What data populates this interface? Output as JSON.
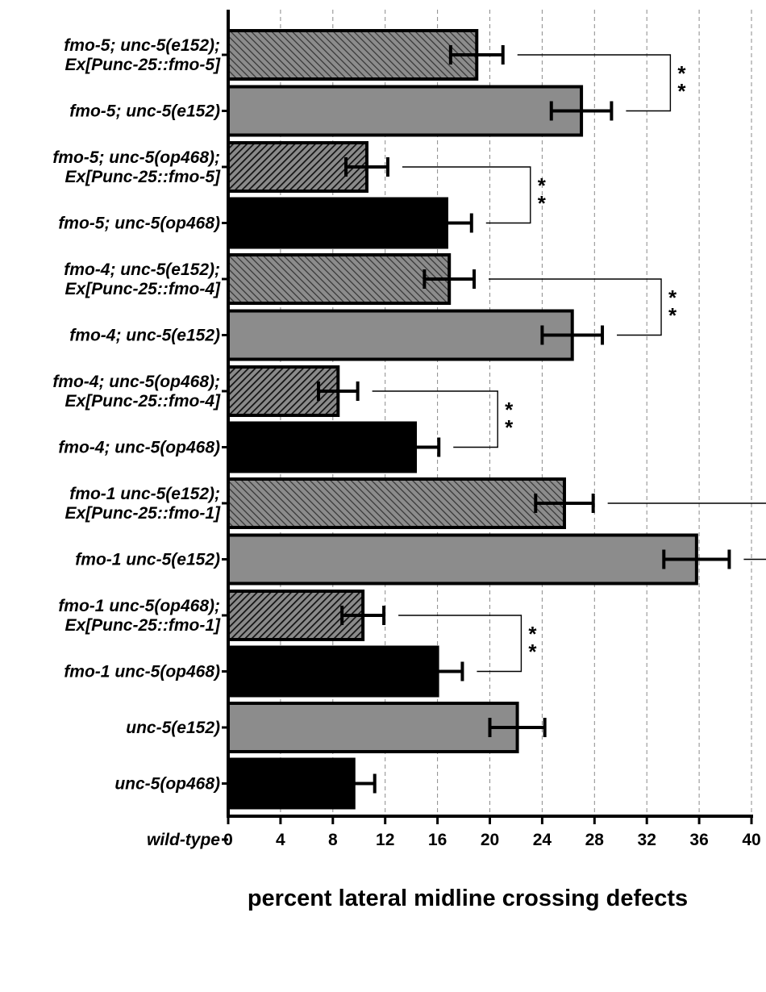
{
  "chart_data": {
    "type": "bar",
    "orientation": "horizontal",
    "xlabel": "percent lateral midline crossing defects",
    "xlim": [
      0,
      40
    ],
    "xticks": [
      0,
      4,
      8,
      12,
      16,
      20,
      24,
      28,
      32,
      36,
      40
    ],
    "grid": "vertical dashed",
    "categories": [
      {
        "lines": [
          "fmo-5; unc-5(e152);",
          "Ex[Punc-25::fmo-5]"
        ],
        "value": 19.0,
        "error": 2.0,
        "style": "hatched-gray"
      },
      {
        "lines": [
          "fmo-5; unc-5(e152)"
        ],
        "value": 27.0,
        "error": 2.3,
        "style": "gray"
      },
      {
        "lines": [
          "fmo-5; unc-5(op468);",
          "Ex[Punc-25::fmo-5]"
        ],
        "value": 10.6,
        "error": 1.6,
        "style": "hatched-black"
      },
      {
        "lines": [
          "fmo-5; unc-5(op468)"
        ],
        "value": 16.7,
        "error": 1.9,
        "style": "black"
      },
      {
        "lines": [
          "fmo-4; unc-5(e152);",
          "Ex[Punc-25::fmo-4]"
        ],
        "value": 16.9,
        "error": 1.9,
        "style": "hatched-gray"
      },
      {
        "lines": [
          "fmo-4; unc-5(e152)"
        ],
        "value": 26.3,
        "error": 2.3,
        "style": "gray"
      },
      {
        "lines": [
          "fmo-4; unc-5(op468);",
          "Ex[Punc-25::fmo-4]"
        ],
        "value": 8.4,
        "error": 1.5,
        "style": "hatched-black"
      },
      {
        "lines": [
          "fmo-4; unc-5(op468)"
        ],
        "value": 14.3,
        "error": 1.8,
        "style": "black"
      },
      {
        "lines": [
          "fmo-1 unc-5(e152);",
          "Ex[Punc-25::fmo-1]"
        ],
        "value": 25.7,
        "error": 2.2,
        "style": "hatched-gray"
      },
      {
        "lines": [
          "fmo-1 unc-5(e152)"
        ],
        "value": 35.8,
        "error": 2.5,
        "style": "gray"
      },
      {
        "lines": [
          "fmo-1 unc-5(op468);",
          "Ex[Punc-25::fmo-1]"
        ],
        "value": 10.3,
        "error": 1.6,
        "style": "hatched-black"
      },
      {
        "lines": [
          "fmo-1 unc-5(op468)"
        ],
        "value": 16.0,
        "error": 1.9,
        "style": "black"
      },
      {
        "lines": [
          "unc-5(e152)"
        ],
        "value": 22.1,
        "error": 2.1,
        "style": "gray"
      },
      {
        "lines": [
          "unc-5(op468)"
        ],
        "value": 9.6,
        "error": 1.6,
        "style": "black"
      },
      {
        "lines": [
          "wild-type"
        ],
        "value": 0,
        "error": 0,
        "style": "none"
      }
    ],
    "comparisons": [
      {
        "from": 0,
        "to": 1,
        "label": "**"
      },
      {
        "from": 2,
        "to": 3,
        "label": "**"
      },
      {
        "from": 4,
        "to": 5,
        "label": "**"
      },
      {
        "from": 6,
        "to": 7,
        "label": "**"
      },
      {
        "from": 8,
        "to": 9,
        "label": ""
      },
      {
        "from": 10,
        "to": 11,
        "label": "**"
      }
    ],
    "colors": {
      "gray": "#8c8c8c",
      "black": "#000000",
      "hatched_gray_bg": "#8c8c8c",
      "hatched_gray_line": "#333333",
      "hatched_black_bg": "#8a8a8a",
      "hatched_black_line": "#111111",
      "grid": "#8a8a8a"
    }
  }
}
